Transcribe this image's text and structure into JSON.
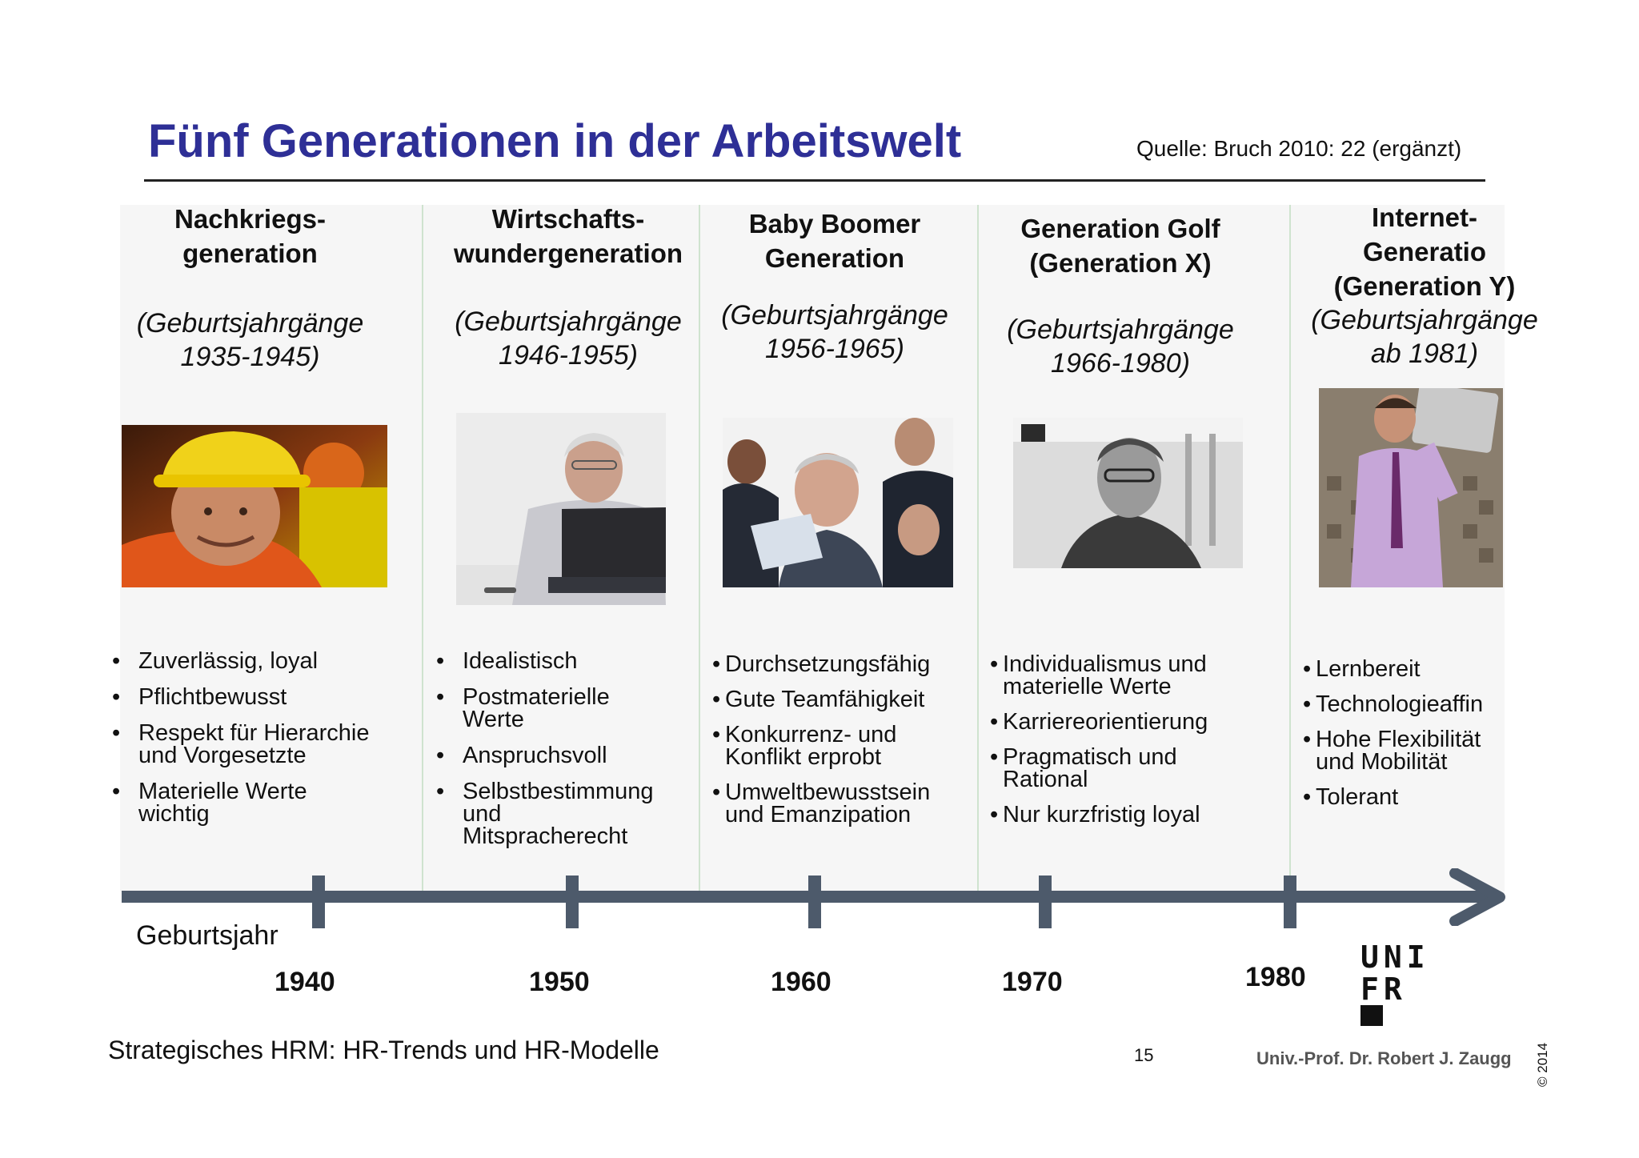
{
  "slide": {
    "title": "Fünf Generationen in der Arbeitswelt",
    "source": "Quelle: Bruch 2010: 22 (ergänzt)"
  },
  "generations": [
    {
      "title": [
        "Nachkriegs-",
        "generation"
      ],
      "years": [
        "(Geburtsjahrgänge",
        "1935-1945)"
      ],
      "photo": "worker-in-hardhat-photo",
      "traits": [
        [
          "Zuverlässig, loyal"
        ],
        [
          "Pflichtbewusst"
        ],
        [
          "Respekt für Hierarchie",
          "und Vorgesetzte"
        ],
        [
          "Materielle Werte",
          "wichtig"
        ]
      ]
    },
    {
      "title": [
        "Wirtschafts-",
        "wundergeneration"
      ],
      "years": [
        "(Geburtsjahrgänge",
        "1946-1955)"
      ],
      "photo": "older-man-laptop-photo",
      "traits": [
        [
          "Idealistisch"
        ],
        [
          "Postmaterielle",
          "Werte"
        ],
        [
          "Anspruchsvoll"
        ],
        [
          "Selbstbestimmung",
          "und",
          "Mitspracherecht"
        ]
      ]
    },
    {
      "title": [
        "Baby Boomer",
        "Generation"
      ],
      "years": [
        "(Geburtsjahrgänge",
        "1956-1965)"
      ],
      "photo": "business-team-photo",
      "traits": [
        [
          "Durchsetzungsfähig"
        ],
        [
          "Gute Teamfähigkeit"
        ],
        [
          "Konkurrenz- und",
          "Konflikt erprobt"
        ],
        [
          "Umweltbewusstsein",
          "und Emanzipation"
        ]
      ]
    },
    {
      "title": [
        "Generation Golf",
        "(Generation X)"
      ],
      "years": [
        "(Geburtsjahrgänge",
        "1966-1980)"
      ],
      "photo": "man-glasses-portrait-photo",
      "traits": [
        [
          "Individualismus und",
          "materielle Werte"
        ],
        [
          "Karriereorientierung"
        ],
        [
          "Pragmatisch und",
          "Rational"
        ],
        [
          "Nur kurzfristig loyal"
        ]
      ]
    },
    {
      "title": [
        "Internet-",
        "Generatio",
        "(Generation Y)"
      ],
      "years": [
        "(Geburtsjahrgänge",
        "ab 1981)"
      ],
      "photo": "young-man-skateboard-photo",
      "traits": [
        [
          "Lernbereit"
        ],
        [
          "Technologieaffin"
        ],
        [
          "Hohe Flexibilität",
          "und Mobilität"
        ],
        [
          "Tolerant"
        ]
      ]
    }
  ],
  "timeline": {
    "axis_label": "Geburtsjahr",
    "years": [
      "1940",
      "1950",
      "1960",
      "1970",
      "1980"
    ]
  },
  "footer": {
    "course": "Strategisches HRM: HR-Trends und HR-Modelle",
    "page": "15",
    "author": "Univ.-Prof. Dr. Robert J. Zaugg",
    "copyright": "© 2014",
    "logo_lines": [
      "UNI",
      "FR"
    ]
  },
  "colors": {
    "title": "#2e2f96",
    "axis": "#4d5a6b",
    "divider": "#cfe3cf"
  }
}
